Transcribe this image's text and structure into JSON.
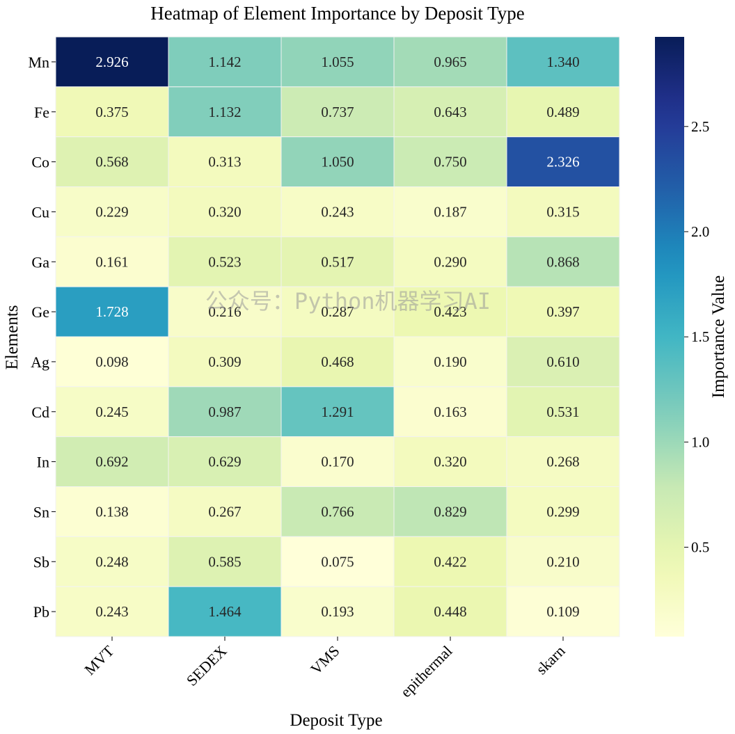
{
  "chart_data": {
    "type": "heatmap",
    "title": "Heatmap of Element Importance by Deposit Type",
    "xlabel": "Deposit Type",
    "ylabel": "Elements",
    "colorbar_label": "Importance Value",
    "colormap": "YlGnBu",
    "vmin": 0.075,
    "vmax": 2.926,
    "colorbar_ticks": [
      "0.5",
      "1.0",
      "1.5",
      "2.0",
      "2.5"
    ],
    "columns": [
      "MVT",
      "SEDEX",
      "VMS",
      "epithermal",
      "skarn"
    ],
    "rows": [
      "Mn",
      "Fe",
      "Co",
      "Cu",
      "Ga",
      "Ge",
      "Ag",
      "Cd",
      "In",
      "Sn",
      "Sb",
      "Pb"
    ],
    "values": [
      [
        2.926,
        1.142,
        1.055,
        0.965,
        1.34
      ],
      [
        0.375,
        1.132,
        0.737,
        0.643,
        0.489
      ],
      [
        0.568,
        0.313,
        1.05,
        0.75,
        2.326
      ],
      [
        0.229,
        0.32,
        0.243,
        0.187,
        0.315
      ],
      [
        0.161,
        0.523,
        0.517,
        0.29,
        0.868
      ],
      [
        1.728,
        0.216,
        0.287,
        0.423,
        0.397
      ],
      [
        0.098,
        0.309,
        0.468,
        0.19,
        0.61
      ],
      [
        0.245,
        0.987,
        1.291,
        0.163,
        0.531
      ],
      [
        0.692,
        0.629,
        0.17,
        0.32,
        0.268
      ],
      [
        0.138,
        0.267,
        0.766,
        0.829,
        0.299
      ],
      [
        0.248,
        0.585,
        0.075,
        0.422,
        0.21
      ],
      [
        0.243,
        1.464,
        0.193,
        0.448,
        0.109
      ]
    ],
    "cell_labels": [
      [
        "2.926",
        "1.142",
        "1.055",
        "0.965",
        "1.340"
      ],
      [
        "0.375",
        "1.132",
        "0.737",
        "0.643",
        "0.489"
      ],
      [
        "0.568",
        "0.313",
        "1.050",
        "0.750",
        "2.326"
      ],
      [
        "0.229",
        "0.320",
        "0.243",
        "0.187",
        "0.315"
      ],
      [
        "0.161",
        "0.523",
        "0.517",
        "0.290",
        "0.868"
      ],
      [
        "1.728",
        "0.216",
        "0.287",
        "0.423",
        "0.397"
      ],
      [
        "0.098",
        "0.309",
        "0.468",
        "0.190",
        "0.610"
      ],
      [
        "0.245",
        "0.987",
        "1.291",
        "0.163",
        "0.531"
      ],
      [
        "0.692",
        "0.629",
        "0.170",
        "0.320",
        "0.268"
      ],
      [
        "0.138",
        "0.267",
        "0.766",
        "0.829",
        "0.299"
      ],
      [
        "0.248",
        "0.585",
        "0.075",
        "0.422",
        "0.210"
      ],
      [
        "0.243",
        "1.464",
        "0.193",
        "0.448",
        "0.109"
      ]
    ],
    "watermark": "公众号：Python机器学习AI"
  }
}
